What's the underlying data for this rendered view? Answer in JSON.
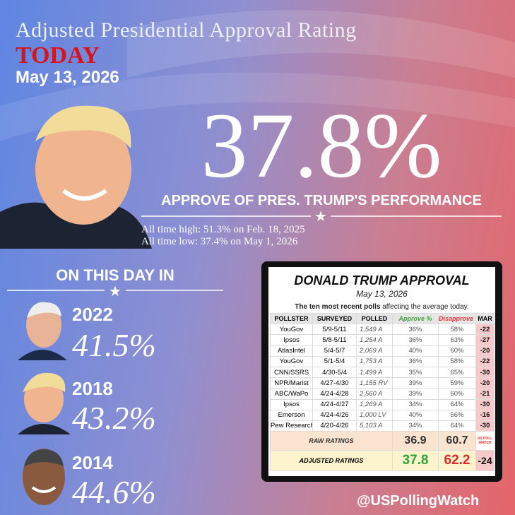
{
  "header": {
    "title": "Adjusted Presidential Approval Rating",
    "today": "TODAY",
    "date": "May 13, 2026"
  },
  "main": {
    "value": "37.8%",
    "caption": "APPROVE OF PRES. TRUMP'S PERFORMANCE",
    "high": "All time high: 51.3% on Feb. 18, 2025",
    "low": "All time low: 37.4% on May 1, 2026"
  },
  "history": {
    "heading": "ON THIS DAY IN",
    "items": [
      {
        "year": "2022",
        "value": "41.5%"
      },
      {
        "year": "2018",
        "value": "43.2%"
      },
      {
        "year": "2014",
        "value": "44.6%"
      }
    ]
  },
  "table": {
    "title": "DONALD TRUMP APPROVAL",
    "date": "May 13, 2026",
    "subtitle": [
      "The ten most recent polls",
      " affecting the average today."
    ],
    "columns": [
      "POLLSTER",
      "SURVEYED",
      "POLLED",
      "Approve %",
      "Disapprove %",
      "MAR"
    ],
    "rows": [
      [
        "YouGov",
        "5/9-5/11",
        "1,549 A",
        "36%",
        "58%",
        "-22"
      ],
      [
        "Ipsos",
        "5/8-5/11",
        "1,254 A",
        "36%",
        "63%",
        "-27"
      ],
      [
        "AtlasIntel",
        "5/4-5/7",
        "2,069 A",
        "40%",
        "60%",
        "-20"
      ],
      [
        "YouGov",
        "5/1-5/4",
        "1,753 A",
        "36%",
        "58%",
        "-22"
      ],
      [
        "CNN/SSRS",
        "4/30-5/4",
        "1,499 A",
        "35%",
        "65%",
        "-30"
      ],
      [
        "NPR/Marist",
        "4/27-4/30",
        "1,155 RV",
        "39%",
        "59%",
        "-20"
      ],
      [
        "ABC/WaPo",
        "4/24-4/28",
        "2,560 A",
        "39%",
        "60%",
        "-21"
      ],
      [
        "Ipsos",
        "4/24-4/27",
        "1,269 A",
        "34%",
        "64%",
        "-30"
      ],
      [
        "Emerson",
        "4/24-4/26",
        "1,000 LV",
        "40%",
        "56%",
        "-16"
      ],
      [
        "Pew Research",
        "4/20-4/26",
        "5,103 A",
        "34%",
        "64%",
        "-30"
      ]
    ],
    "raw": {
      "label": "RAW RATINGS",
      "approve": "36.9",
      "disapprove": "60.7",
      "badge": "US POLL WATCH"
    },
    "adjusted": {
      "label": "ADJUSTED RATINGS",
      "approve": "37.8",
      "disapprove": "62.2",
      "margin": "-24"
    }
  },
  "footer": {
    "handle": "@USPollingWatch"
  }
}
